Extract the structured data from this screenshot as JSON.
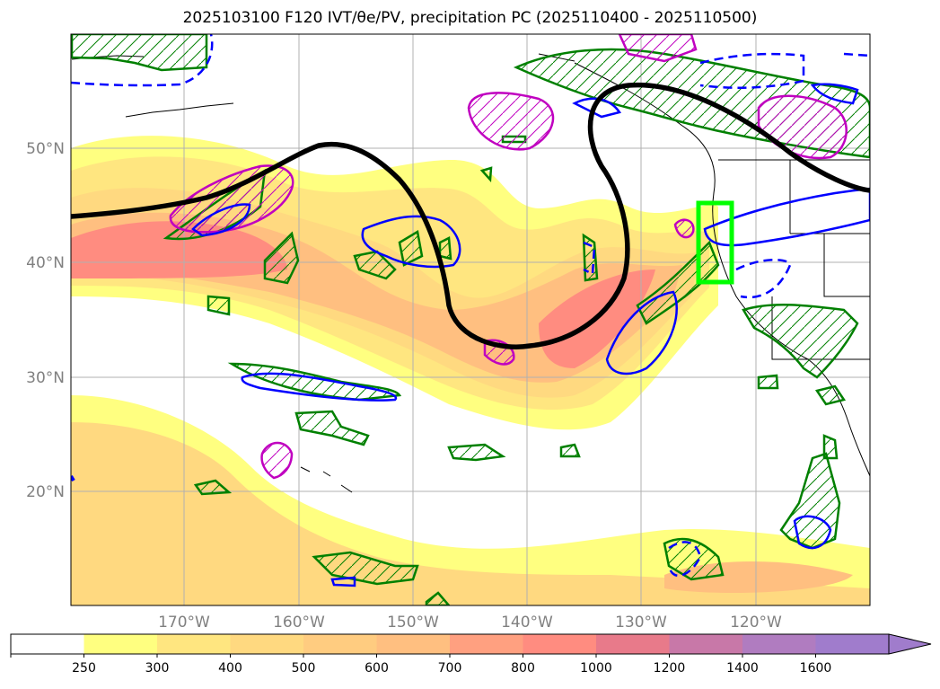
{
  "title": "2025103100 F120 IVT/θe/PV, precipitation PC (2025110400 - 2025110500)",
  "map": {
    "lon_labels": [
      "170°W",
      "160°W",
      "150°W",
      "140°W",
      "130°W",
      "120°W"
    ],
    "lat_labels": [
      "50°N",
      "40°N",
      "30°N",
      "20°N"
    ],
    "grid": true,
    "highlight_box_color": "#00ff00",
    "contour_colors": {
      "green": "#008000",
      "blue": "#0000ff",
      "magenta": "#c000c0",
      "black": "#000000"
    }
  },
  "colorbar": {
    "ticks": [
      "250",
      "300",
      "400",
      "500",
      "600",
      "700",
      "800",
      "1000",
      "1200",
      "1400",
      "1600"
    ],
    "colors": [
      "#ffffff",
      "#ffff80",
      "#ffe680",
      "#ffd980",
      "#ffcc80",
      "#ffbf80",
      "#ffa080",
      "#ff8c80",
      "#e87a8a",
      "#c878a8",
      "#b07cc0",
      "#a07ccc"
    ],
    "extend": "max"
  }
}
